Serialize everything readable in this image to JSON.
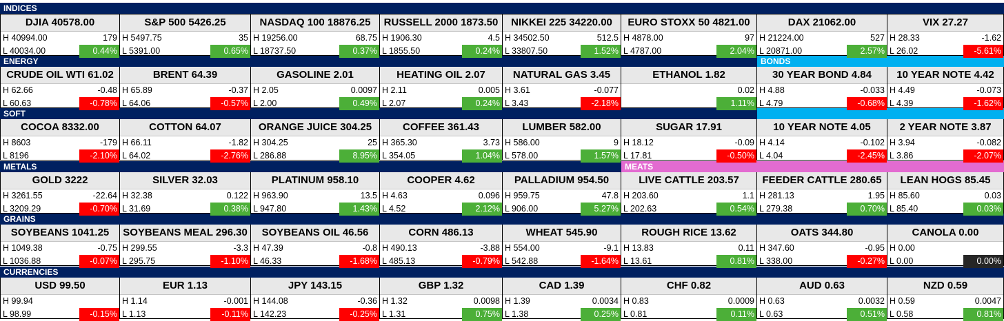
{
  "colors": {
    "section": "#002060",
    "bonds": "#00b0f0",
    "meats": "#e36bd1",
    "up": "#4caf38",
    "down": "#ff0000",
    "flat": "#262626"
  },
  "sections": [
    {
      "label": "INDICES",
      "theme": "section"
    },
    {
      "label": "ENERGY",
      "theme": "section"
    },
    {
      "label": "BONDS",
      "theme": "bonds"
    },
    {
      "label": "SOFT",
      "theme": "section"
    },
    {
      "label": "METALS",
      "theme": "section"
    },
    {
      "label": "MEATS",
      "theme": "meats"
    },
    {
      "label": "GRAINS",
      "theme": "section"
    },
    {
      "label": "CURRENCIES",
      "theme": "section"
    }
  ],
  "rows": [
    [
      {
        "title": "DJIA  40578.00",
        "high": "H 40994.00",
        "change": "179",
        "low": "L 40034.00",
        "pct": "0.44%",
        "dir": "pos"
      },
      {
        "title": "S&P 500 5426.25",
        "high": "H 5497.75",
        "change": "35",
        "low": "L 5391.00",
        "pct": "0.65%",
        "dir": "pos"
      },
      {
        "title": "NASDAQ 100  18876.25",
        "high": "H 19256.00",
        "change": "68.75",
        "low": "L 18737.50",
        "pct": "0.37%",
        "dir": "pos"
      },
      {
        "title": "RUSSELL 2000  1873.50",
        "high": "H 1906.30",
        "change": "4.5",
        "low": "L 1855.50",
        "pct": "0.24%",
        "dir": "pos"
      },
      {
        "title": "NIKKEI 225  34220.00",
        "high": "H 34502.50",
        "change": "512.5",
        "low": "L 33807.50",
        "pct": "1.52%",
        "dir": "pos"
      },
      {
        "title": "EURO STOXX 50  4821.00",
        "high": "H 4878.00",
        "change": "97",
        "low": "L 4787.00",
        "pct": "2.04%",
        "dir": "pos"
      },
      {
        "title": "DAX  21062.00",
        "high": "H 21224.00",
        "change": "527",
        "low": "L 20871.00",
        "pct": "2.57%",
        "dir": "pos"
      },
      {
        "title": "VIX  27.27",
        "high": "H 28.33",
        "change": "-1.62",
        "low": "L 26.02",
        "pct": "-5.61%",
        "dir": "neg"
      }
    ],
    [
      {
        "title": "CRUDE OIL WTI  61.02",
        "high": "H 62.66",
        "change": "-0.48",
        "low": "L 60.63",
        "pct": "-0.78%",
        "dir": "neg"
      },
      {
        "title": "BRENT  64.39",
        "high": "H 65.89",
        "change": "-0.37",
        "low": "L 64.06",
        "pct": "-0.57%",
        "dir": "neg"
      },
      {
        "title": "GASOLINE  2.01",
        "high": "H 2.05",
        "change": "0.0097",
        "low": "L 2.00",
        "pct": "0.49%",
        "dir": "pos"
      },
      {
        "title": "HEATING OIL  2.07",
        "high": "H 2.11",
        "change": "0.005",
        "low": "L 2.07",
        "pct": "0.24%",
        "dir": "pos"
      },
      {
        "title": "NATURAL GAS  3.45",
        "high": "H 3.61",
        "change": "-0.077",
        "low": "L 3.43",
        "pct": "-2.18%",
        "dir": "neg"
      },
      {
        "title": "ETHANOL  1.82",
        "high": "",
        "change": "0.02",
        "low": "",
        "pct": "1.11%",
        "dir": "pos"
      },
      {
        "title": "30 YEAR BOND  4.84",
        "high": "H 4.88",
        "change": "-0.033",
        "low": "L 4.79",
        "pct": "-0.68%",
        "dir": "neg"
      },
      {
        "title": "10 YEAR NOTE  4.42",
        "high": "H 4.49",
        "change": "-0.073",
        "low": "L 4.39",
        "pct": "-1.62%",
        "dir": "neg"
      }
    ],
    [
      {
        "title": "COCOA  8332.00",
        "high": "H 8603",
        "change": "-179",
        "low": "L 8196",
        "pct": "-2.10%",
        "dir": "neg"
      },
      {
        "title": "COTTON  64.07",
        "high": "H 66.11",
        "change": "-1.82",
        "low": "L 64.02",
        "pct": "-2.76%",
        "dir": "neg"
      },
      {
        "title": "ORANGE JUICE  304.25",
        "high": "H 304.25",
        "change": "25",
        "low": "L 286.88",
        "pct": "8.95%",
        "dir": "pos"
      },
      {
        "title": "COFFEE  361.43",
        "high": "H 365.30",
        "change": "3.73",
        "low": "L 354.05",
        "pct": "1.04%",
        "dir": "pos"
      },
      {
        "title": "LUMBER  582.00",
        "high": "H 586.00",
        "change": "9",
        "low": "L 578.00",
        "pct": "1.57%",
        "dir": "pos"
      },
      {
        "title": "SUGAR  17.91",
        "high": "H 18.12",
        "change": "-0.09",
        "low": "L 17.81",
        "pct": "-0.50%",
        "dir": "neg"
      },
      {
        "title": "10 YEAR NOTE  4.05",
        "high": "H 4.14",
        "change": "-0.102",
        "low": "L 4.04",
        "pct": "-2.45%",
        "dir": "neg"
      },
      {
        "title": "2 YEAR NOTE  3.87",
        "high": "H 3.94",
        "change": "-0.082",
        "low": "L 3.86",
        "pct": "-2.07%",
        "dir": "neg"
      }
    ],
    [
      {
        "title": "GOLD  3222",
        "high": "H 3261.55",
        "change": "-22.64",
        "low": "L 3209.29",
        "pct": "-0.70%",
        "dir": "neg"
      },
      {
        "title": "SILVER  32.03",
        "high": "H 32.38",
        "change": "0.122",
        "low": "L 31.69",
        "pct": "0.38%",
        "dir": "pos"
      },
      {
        "title": "PLATINUM  958.10",
        "high": "H 963.90",
        "change": "13.5",
        "low": "L 947.80",
        "pct": "1.43%",
        "dir": "pos"
      },
      {
        "title": "COOPER  4.62",
        "high": "H 4.63",
        "change": "0.096",
        "low": "L 4.52",
        "pct": "2.12%",
        "dir": "pos"
      },
      {
        "title": "PALLADIUM  954.50",
        "high": "H 959.75",
        "change": "47.8",
        "low": "L 906.00",
        "pct": "5.27%",
        "dir": "pos"
      },
      {
        "title": "LIVE CATTLE  203.57",
        "high": "H 203.60",
        "change": "1.1",
        "low": "L 202.63",
        "pct": "0.54%",
        "dir": "pos"
      },
      {
        "title": "FEEDER CATTLE  280.65",
        "high": "H 281.13",
        "change": "1.95",
        "low": "L 279.38",
        "pct": "0.70%",
        "dir": "pos"
      },
      {
        "title": "LEAN HOGS  85.45",
        "high": "H 85.60",
        "change": "0.03",
        "low": "L 85.40",
        "pct": "0.03%",
        "dir": "pos"
      }
    ],
    [
      {
        "title": "SOYBEANS  1041.25",
        "high": "H 1049.38",
        "change": "-0.75",
        "low": "L 1036.88",
        "pct": "-0.07%",
        "dir": "neg"
      },
      {
        "title": "SOYBEANS MEAL  296.30",
        "high": "H 299.55",
        "change": "-3.3",
        "low": "L 295.75",
        "pct": "-1.10%",
        "dir": "neg"
      },
      {
        "title": "SOYBEANS OIL  46.56",
        "high": "H 47.39",
        "change": "-0.8",
        "low": "L 46.33",
        "pct": "-1.68%",
        "dir": "neg"
      },
      {
        "title": "CORN  486.13",
        "high": "H 490.13",
        "change": "-3.88",
        "low": "L 485.13",
        "pct": "-0.79%",
        "dir": "neg"
      },
      {
        "title": "WHEAT  545.90",
        "high": "H 554.00",
        "change": "-9.1",
        "low": "L 542.88",
        "pct": "-1.64%",
        "dir": "neg"
      },
      {
        "title": "ROUGH RICE  13.62",
        "high": "H 13.83",
        "change": "0.11",
        "low": "L 13.61",
        "pct": "0.81%",
        "dir": "pos"
      },
      {
        "title": "OATS  344.80",
        "high": "H 347.60",
        "change": "-0.95",
        "low": "L 338.00",
        "pct": "-0.27%",
        "dir": "neg"
      },
      {
        "title": "CANOLA  0.00",
        "high": "H 0.00",
        "change": "",
        "low": "L 0.00",
        "pct": "0.00%",
        "dir": "zero"
      }
    ],
    [
      {
        "title": "USD  99.50",
        "high": "H 99.94",
        "change": "",
        "low": "L 98.99",
        "pct": "-0.15%",
        "dir": "neg"
      },
      {
        "title": "EUR  1.13",
        "high": "H 1.14",
        "change": "-0.001",
        "low": "L 1.13",
        "pct": "-0.11%",
        "dir": "neg"
      },
      {
        "title": "JPY  143.15",
        "high": "H 144.08",
        "change": "-0.36",
        "low": "L 142.23",
        "pct": "-0.25%",
        "dir": "neg"
      },
      {
        "title": "GBP  1.32",
        "high": "H 1.32",
        "change": "0.0098",
        "low": "L 1.31",
        "pct": "0.75%",
        "dir": "pos"
      },
      {
        "title": "CAD  1.39",
        "high": "H 1.39",
        "change": "0.0034",
        "low": "L 1.38",
        "pct": "0.25%",
        "dir": "pos"
      },
      {
        "title": "CHF  0.82",
        "high": "H 0.83",
        "change": "0.0009",
        "low": "L 0.81",
        "pct": "0.11%",
        "dir": "pos"
      },
      {
        "title": "AUD  0.63",
        "high": "H 0.63",
        "change": "0.0032",
        "low": "L 0.63",
        "pct": "0.51%",
        "dir": "pos"
      },
      {
        "title": "NZD  0.59",
        "high": "H 0.59",
        "change": "0.0047",
        "low": "L 0.58",
        "pct": "0.81%",
        "dir": "pos"
      }
    ]
  ]
}
